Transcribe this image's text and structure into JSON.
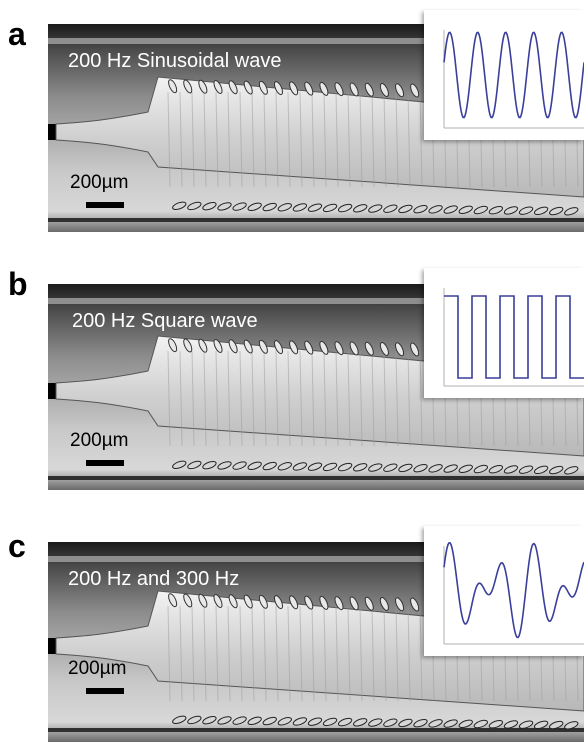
{
  "panels": [
    {
      "letter": "a",
      "caption": "200 Hz Sinusoidal wave",
      "scale_label": "200µm",
      "waveform": "sinusoidal"
    },
    {
      "letter": "b",
      "caption": "200 Hz Square wave",
      "scale_label": "200µm",
      "waveform": "square"
    },
    {
      "letter": "c",
      "caption": "200 Hz and 300 Hz",
      "scale_label": "200µm",
      "waveform": "two-tone"
    }
  ],
  "colors": {
    "waveform_line": "#3a3f9a",
    "inset_axes": "#b0b0b0"
  }
}
